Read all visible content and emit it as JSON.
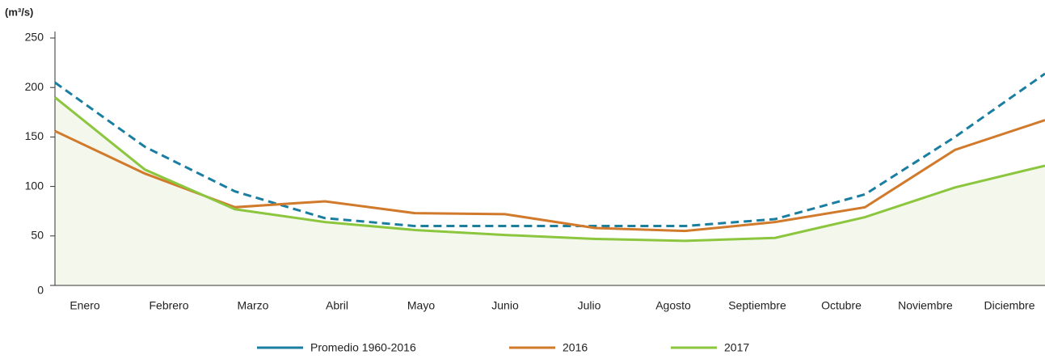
{
  "chart_data": {
    "type": "line",
    "y_label": "(m³/s)",
    "categories": [
      "Enero",
      "Febrero",
      "Marzo",
      "Abril",
      "Mayo",
      "Junio",
      "Julio",
      "Agosto",
      "Septiembre",
      "Octubre",
      "Noviembre",
      "Diciembre"
    ],
    "series": [
      {
        "name": "Promedio 1960-2016",
        "color": "#1a7ea1",
        "dashed": true,
        "values": [
          205,
          140,
          95,
          68,
          60,
          60,
          60,
          60,
          67,
          92,
          150,
          214
        ]
      },
      {
        "name": "2016",
        "color": "#d17a2c",
        "values": [
          156,
          113,
          79,
          85,
          73,
          72,
          58,
          55,
          64,
          79,
          137,
          167
        ]
      },
      {
        "name": "2017",
        "color": "#8cc63f",
        "fill": "#f4f8ec",
        "values": [
          190,
          117,
          77,
          64,
          56,
          51,
          47,
          45,
          48,
          69,
          99,
          121
        ]
      }
    ],
    "ylim": [
      0,
      250
    ],
    "yticks": [
      0,
      50,
      100,
      150,
      200,
      250
    ],
    "grid": false
  }
}
